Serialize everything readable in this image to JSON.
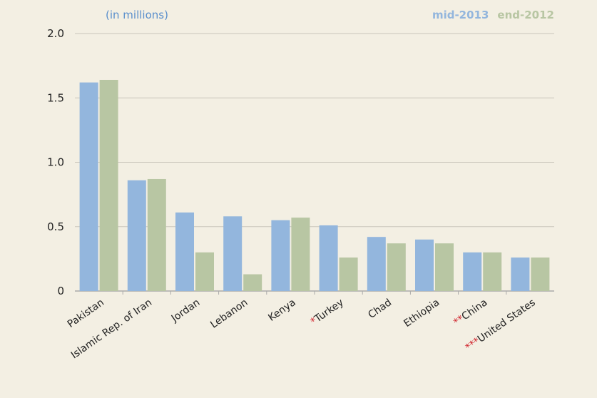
{
  "chart_data": {
    "type": "bar",
    "y_label": "(in millions)",
    "categories": [
      "Pakistan",
      "Islamic Rep. of Iran",
      "Jordan",
      "Lebanon",
      "Kenya",
      "*Turkey",
      "Chad",
      "Ethiopia",
      "**China",
      "***United States"
    ],
    "series": [
      {
        "name": "mid-2013",
        "color": "#93b6dd",
        "values": [
          1.62,
          0.86,
          0.61,
          0.58,
          0.55,
          0.51,
          0.42,
          0.4,
          0.3,
          0.26
        ]
      },
      {
        "name": "end-2012",
        "color": "#b8c6a3",
        "values": [
          1.64,
          0.87,
          0.3,
          0.13,
          0.57,
          0.26,
          0.37,
          0.37,
          0.3,
          0.26
        ]
      }
    ],
    "ylim": [
      0,
      2.0
    ],
    "yticks": [
      0,
      0.5,
      {
        "value": 1.0,
        "label": "1.0"
      },
      1.5,
      {
        "value": 2.0,
        "label": "2.0"
      }
    ],
    "grid": true,
    "legend": "top-right"
  }
}
